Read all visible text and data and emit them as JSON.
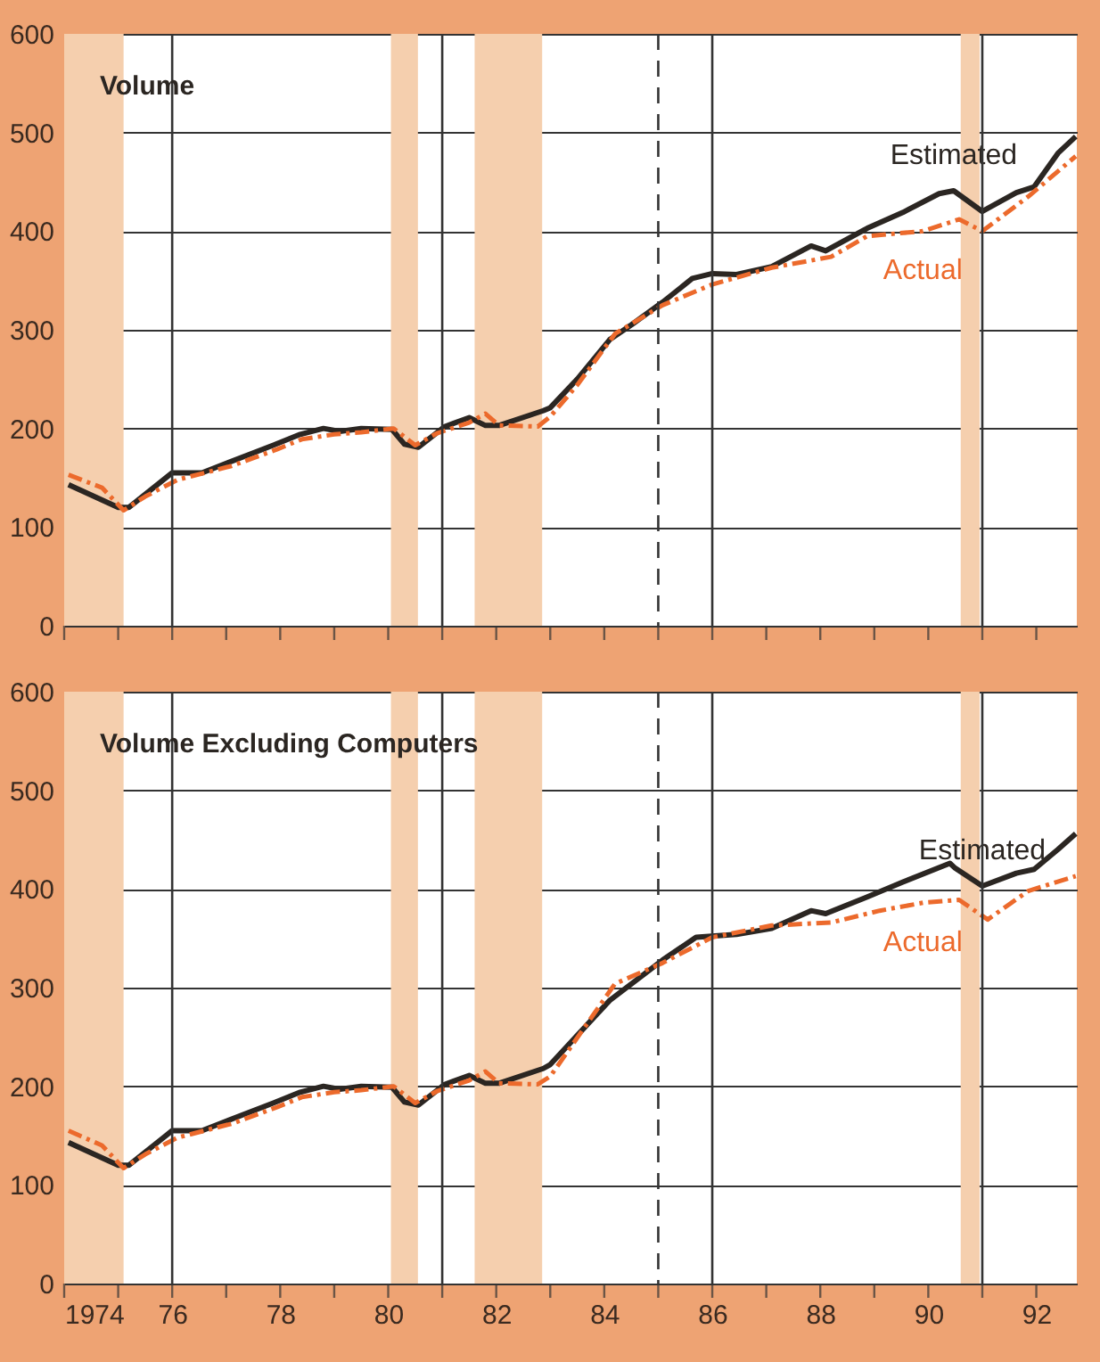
{
  "chart_data": [
    {
      "type": "line",
      "title": "Volume",
      "tick_labels": "y",
      "grid": "y",
      "xlim": [
        1974,
        1992.75
      ],
      "ylim": [
        0,
        600
      ],
      "yticks": [
        0,
        100,
        200,
        300,
        400,
        500,
        600
      ],
      "xticks": [
        {
          "value": 1974,
          "label": null
        },
        {
          "value": 1975,
          "label": null
        },
        {
          "value": 1976,
          "label": null
        },
        {
          "value": 1977,
          "label": null
        },
        {
          "value": 1978,
          "label": null
        },
        {
          "value": 1979,
          "label": null
        },
        {
          "value": 1980,
          "label": null
        },
        {
          "value": 1981,
          "label": null
        },
        {
          "value": 1982,
          "label": null
        },
        {
          "value": 1983,
          "label": null
        },
        {
          "value": 1984,
          "label": null
        },
        {
          "value": 1985,
          "label": null
        },
        {
          "value": 1986,
          "label": null
        },
        {
          "value": 1987,
          "label": null
        },
        {
          "value": 1988,
          "label": null
        },
        {
          "value": 1989,
          "label": null
        },
        {
          "value": 1990,
          "label": null
        },
        {
          "value": 1991,
          "label": null
        },
        {
          "value": 1992,
          "label": null
        }
      ],
      "bands": [
        {
          "axis": "x",
          "from": 1974,
          "to": 1975.1,
          "color": "#f5cfae"
        },
        {
          "axis": "x",
          "from": 1980.05,
          "to": 1980.55,
          "color": "#f5cfae"
        },
        {
          "axis": "x",
          "from": 1981.6,
          "to": 1982.85,
          "color": "#f5cfae"
        },
        {
          "axis": "x",
          "from": 1990.6,
          "to": 1990.95,
          "color": "#f5cfae"
        }
      ],
      "ref_lines": [
        {
          "axis": "x",
          "value": 1976,
          "line_style": "solid"
        },
        {
          "axis": "x",
          "value": 1981,
          "line_style": "solid"
        },
        {
          "axis": "x",
          "value": 1986,
          "line_style": "solid"
        },
        {
          "axis": "x",
          "value": 1991,
          "line_style": "solid"
        },
        {
          "axis": "x",
          "value": 1985,
          "line_style": "dashed"
        }
      ],
      "series": [
        {
          "name": "Estimated",
          "color": "#2b2622",
          "line_style": "solid",
          "x": [
            1974.08,
            1975.0,
            1975.2,
            1976.0,
            1976.55,
            1977.87,
            1978.37,
            1978.8,
            1979.1,
            1979.5,
            1980.07,
            1980.3,
            1980.56,
            1981.05,
            1981.5,
            1981.8,
            1982.05,
            1982.87,
            1983.0,
            1983.5,
            1984.1,
            1984.5,
            1985.08,
            1985.63,
            1986.0,
            1986.45,
            1987.1,
            1987.83,
            1988.1,
            1988.87,
            1989.53,
            1990.2,
            1990.47,
            1991.0,
            1991.63,
            1991.96,
            1992.4,
            1992.73
          ],
          "values": [
            143,
            120,
            120,
            155,
            155,
            183,
            194,
            200,
            197,
            200,
            199,
            184,
            181,
            202,
            211,
            203,
            203,
            218,
            221,
            250,
            290,
            305,
            328,
            352,
            357,
            356,
            364,
            385,
            380,
            403,
            419,
            438,
            441,
            420,
            439,
            445,
            479,
            496
          ]
        },
        {
          "name": "Actual",
          "color": "#ec6a2c",
          "line_style": "dashed",
          "x": [
            1974.08,
            1974.7,
            1975.1,
            1975.5,
            1976.1,
            1977.1,
            1977.95,
            1978.4,
            1979.0,
            1979.5,
            1980.1,
            1980.5,
            1980.9,
            1981.5,
            1981.8,
            1982.05,
            1982.77,
            1983.0,
            1983.5,
            1984.2,
            1985.08,
            1986.0,
            1987.1,
            1988.2,
            1988.87,
            1989.9,
            1990.57,
            1991.0,
            1991.85,
            1992.73
          ],
          "values": [
            153,
            140,
            117,
            131,
            148,
            162,
            179,
            189,
            194,
            196,
            200,
            183,
            195,
            206,
            215,
            203,
            202,
            212,
            244,
            296,
            325,
            346,
            363,
            374,
            395,
            400,
            412,
            400,
            435,
            476
          ]
        }
      ]
    },
    {
      "type": "line",
      "title": "Volume Excluding Computers",
      "grid": "y",
      "xlim": [
        1974,
        1992.75
      ],
      "ylim": [
        0,
        600
      ],
      "yticks": [
        0,
        100,
        200,
        300,
        400,
        500,
        600
      ],
      "xticks": [
        {
          "value": 1974,
          "label": "1974"
        },
        {
          "value": 1975,
          "label": null
        },
        {
          "value": 1976,
          "label": "76"
        },
        {
          "value": 1977,
          "label": null
        },
        {
          "value": 1978,
          "label": "78"
        },
        {
          "value": 1979,
          "label": null
        },
        {
          "value": 1980,
          "label": "80"
        },
        {
          "value": 1981,
          "label": null
        },
        {
          "value": 1982,
          "label": "82"
        },
        {
          "value": 1983,
          "label": null
        },
        {
          "value": 1984,
          "label": "84"
        },
        {
          "value": 1985,
          "label": null
        },
        {
          "value": 1986,
          "label": "86"
        },
        {
          "value": 1987,
          "label": null
        },
        {
          "value": 1988,
          "label": "88"
        },
        {
          "value": 1989,
          "label": null
        },
        {
          "value": 1990,
          "label": "90"
        },
        {
          "value": 1991,
          "label": null
        },
        {
          "value": 1992,
          "label": "92"
        }
      ],
      "bands": [
        {
          "axis": "x",
          "from": 1974,
          "to": 1975.1,
          "color": "#f5cfae"
        },
        {
          "axis": "x",
          "from": 1980.05,
          "to": 1980.55,
          "color": "#f5cfae"
        },
        {
          "axis": "x",
          "from": 1981.6,
          "to": 1982.85,
          "color": "#f5cfae"
        },
        {
          "axis": "x",
          "from": 1990.6,
          "to": 1990.95,
          "color": "#f5cfae"
        }
      ],
      "ref_lines": [
        {
          "axis": "x",
          "value": 1976,
          "line_style": "solid"
        },
        {
          "axis": "x",
          "value": 1981,
          "line_style": "solid"
        },
        {
          "axis": "x",
          "value": 1986,
          "line_style": "solid"
        },
        {
          "axis": "x",
          "value": 1991,
          "line_style": "solid"
        },
        {
          "axis": "x",
          "value": 1985,
          "line_style": "dashed"
        }
      ],
      "series": [
        {
          "name": "Estimated",
          "color": "#2b2622",
          "line_style": "solid",
          "x": [
            1974.08,
            1975.0,
            1975.2,
            1976.0,
            1976.55,
            1977.87,
            1978.37,
            1978.8,
            1979.1,
            1979.5,
            1980.07,
            1980.3,
            1980.56,
            1981.05,
            1981.5,
            1981.8,
            1982.05,
            1982.87,
            1983.0,
            1984.1,
            1985.08,
            1985.7,
            1986.45,
            1987.1,
            1987.83,
            1988.1,
            1988.87,
            1989.53,
            1990.4,
            1990.5,
            1991.0,
            1991.63,
            1991.96,
            1992.4,
            1992.73
          ],
          "values": [
            143,
            120,
            120,
            155,
            155,
            183,
            194,
            200,
            197,
            200,
            199,
            184,
            181,
            202,
            211,
            203,
            203,
            218,
            222,
            287,
            328,
            351,
            354,
            360,
            378,
            375,
            392,
            407,
            426,
            421,
            403,
            416,
            420,
            440,
            456
          ]
        },
        {
          "name": "Actual",
          "color": "#ec6a2c",
          "line_style": "dashed",
          "x": [
            1974.08,
            1974.7,
            1975.1,
            1975.5,
            1976.1,
            1977.1,
            1977.95,
            1978.4,
            1979.0,
            1979.5,
            1980.1,
            1980.5,
            1980.9,
            1981.5,
            1981.8,
            1982.05,
            1982.77,
            1983.0,
            1984.2,
            1985.08,
            1986.0,
            1987.1,
            1988.2,
            1989.1,
            1989.9,
            1990.57,
            1991.1,
            1991.85,
            1992.73
          ],
          "values": [
            155,
            140,
            117,
            131,
            148,
            162,
            179,
            189,
            194,
            196,
            200,
            183,
            195,
            206,
            215,
            203,
            202,
            210,
            304,
            325,
            351,
            363,
            366,
            378,
            386,
            389,
            369,
            398,
            413
          ]
        }
      ]
    }
  ]
}
